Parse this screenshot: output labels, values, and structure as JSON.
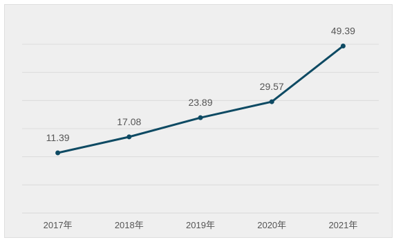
{
  "chart_data": {
    "type": "line",
    "title": "",
    "xlabel": "",
    "ylabel": "",
    "x": [
      "2017年",
      "2018年",
      "2019年",
      "2020年",
      "2021年"
    ],
    "series": [
      {
        "values": [
          11.39,
          17.08,
          23.89,
          29.57,
          49.39
        ],
        "labels": [
          "11.39",
          "17.08",
          "23.89",
          "29.57",
          "49.39"
        ]
      }
    ],
    "ylim": [
      -10,
      50
    ],
    "grid": true,
    "legend": "none"
  },
  "colors": {
    "line": "#0e4a63",
    "grid": "#d7d7d7",
    "text": "#555555",
    "background": "#efefef"
  }
}
